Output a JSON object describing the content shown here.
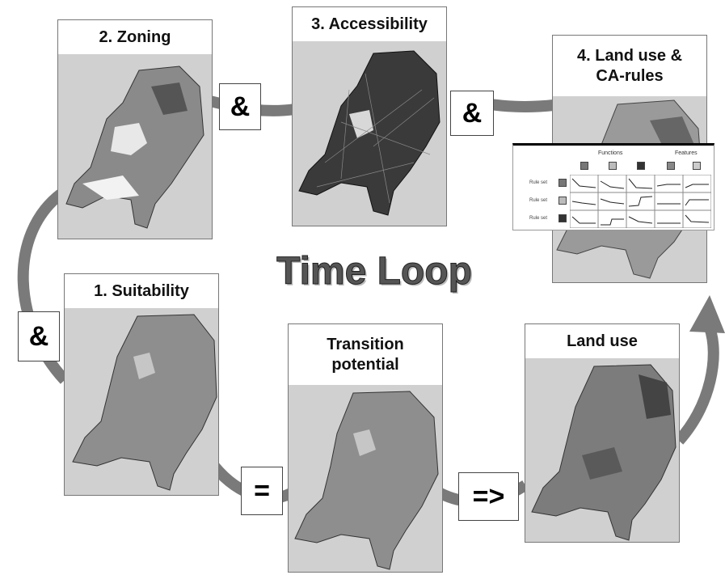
{
  "panels": {
    "zoning": "2. Zoning",
    "accessibility": "3. Accessibility",
    "landuse_rules": "4.  Land use &\nCA-rules",
    "suitability": "1. Suitability",
    "transition": "Transition\npotential",
    "landuse": "Land use"
  },
  "operators": {
    "and1": "&",
    "and2": "&",
    "and3": "&",
    "equals": "=",
    "implies": "=>"
  },
  "headline": "Time Loop",
  "rules_table": {
    "functions": "Functions",
    "features": "Features",
    "rule_set": "Rule set",
    "side_label": "Functions"
  }
}
